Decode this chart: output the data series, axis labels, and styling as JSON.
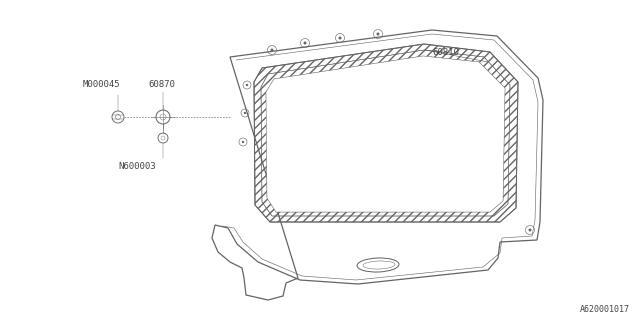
{
  "bg_color": "#ffffff",
  "line_color": "#646464",
  "part_label_60810": "60810",
  "part_label_60870": "60870",
  "part_label_M000045": "M000045",
  "part_label_N600003": "N600003",
  "diagram_code": "A620001017",
  "label_fontsize": 6.5,
  "code_fontsize": 6.0,
  "lw_main": 0.9,
  "lw_thin": 0.6
}
